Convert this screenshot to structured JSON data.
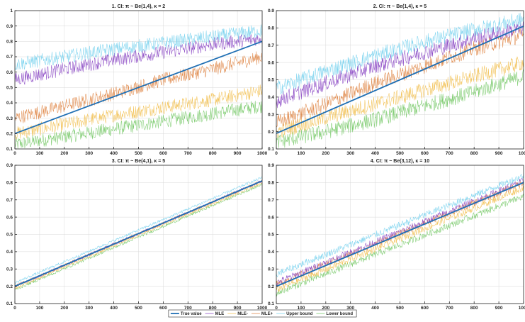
{
  "colors": {
    "true_value": "#1f6fb4",
    "mle": "#8e4ec6",
    "mle_minus": "#f2c35a",
    "mle_plus": "#e08a4c",
    "upper": "#7fd4ef",
    "lower": "#7ccb6e"
  },
  "legend": {
    "items": [
      {
        "key": "true_value",
        "label": "True value"
      },
      {
        "key": "mle",
        "label": "MLE"
      },
      {
        "key": "mle_minus",
        "label": "MLE-"
      },
      {
        "key": "mle_plus",
        "label": "MLE+"
      },
      {
        "key": "upper",
        "label": "Upper bound"
      },
      {
        "key": "lower",
        "label": "Lower bound"
      }
    ]
  },
  "chart_data": [
    {
      "type": "line",
      "title": "1. CI: π ~ Be(1,4), κ = 2",
      "xlim": [
        0,
        1000
      ],
      "ylim": [
        0.1,
        1.0
      ],
      "xticks": [
        "0",
        "100",
        "200",
        "300",
        "400",
        "500",
        "600",
        "700",
        "800",
        "900",
        "1000"
      ],
      "yticks": [
        "0.1",
        "0.2",
        "0.3",
        "0.4",
        "0.5",
        "0.6",
        "0.7",
        "0.8",
        "0.9",
        "1"
      ],
      "grid": true,
      "series": [
        {
          "name": "True value",
          "key": "true_value",
          "x": [
            0,
            1000
          ],
          "y": [
            0.2,
            0.8
          ]
        },
        {
          "name": "MLE",
          "key": "mle",
          "x": [
            0,
            200,
            400,
            600,
            800,
            1000
          ],
          "y": [
            0.55,
            0.62,
            0.68,
            0.73,
            0.78,
            0.82
          ]
        },
        {
          "name": "MLE-",
          "key": "mle_minus",
          "x": [
            0,
            200,
            400,
            600,
            800,
            1000
          ],
          "y": [
            0.2,
            0.26,
            0.32,
            0.37,
            0.42,
            0.48
          ]
        },
        {
          "name": "MLE+",
          "key": "mle_plus",
          "x": [
            0,
            200,
            400,
            600,
            800,
            1000
          ],
          "y": [
            0.3,
            0.38,
            0.46,
            0.55,
            0.62,
            0.7
          ]
        },
        {
          "name": "Upper bound",
          "key": "upper",
          "x": [
            0,
            200,
            400,
            600,
            800,
            1000
          ],
          "y": [
            0.65,
            0.7,
            0.75,
            0.79,
            0.83,
            0.87
          ]
        },
        {
          "name": "Lower bound",
          "key": "lower",
          "x": [
            0,
            200,
            400,
            600,
            800,
            1000
          ],
          "y": [
            0.13,
            0.18,
            0.23,
            0.28,
            0.33,
            0.38
          ]
        }
      ]
    },
    {
      "type": "line",
      "title": "2. CI: π ~ Be(1,4), κ = 5",
      "xlim": [
        0,
        1000
      ],
      "ylim": [
        0.1,
        0.9
      ],
      "xticks": [
        "0",
        "100",
        "200",
        "300",
        "400",
        "500",
        "600",
        "700",
        "800",
        "900",
        "1000"
      ],
      "yticks": [
        "0.1",
        "0.2",
        "0.3",
        "0.4",
        "0.5",
        "0.6",
        "0.7",
        "0.8",
        "0.9"
      ],
      "grid": true,
      "series": [
        {
          "name": "True value",
          "key": "true_value",
          "x": [
            0,
            1000
          ],
          "y": [
            0.19,
            0.81
          ]
        },
        {
          "name": "MLE",
          "key": "mle",
          "x": [
            0,
            200,
            400,
            600,
            800,
            1000
          ],
          "y": [
            0.38,
            0.48,
            0.58,
            0.66,
            0.74,
            0.8
          ]
        },
        {
          "name": "MLE-",
          "key": "mle_minus",
          "x": [
            0,
            200,
            400,
            600,
            800,
            1000
          ],
          "y": [
            0.2,
            0.28,
            0.36,
            0.44,
            0.52,
            0.6
          ]
        },
        {
          "name": "MLE+",
          "key": "mle_plus",
          "x": [
            0,
            200,
            400,
            600,
            800,
            1000
          ],
          "y": [
            0.25,
            0.36,
            0.48,
            0.58,
            0.68,
            0.76
          ]
        },
        {
          "name": "Upper bound",
          "key": "upper",
          "x": [
            0,
            200,
            400,
            600,
            800,
            1000
          ],
          "y": [
            0.45,
            0.55,
            0.64,
            0.72,
            0.79,
            0.85
          ]
        },
        {
          "name": "Lower bound",
          "key": "lower",
          "x": [
            0,
            200,
            400,
            600,
            800,
            1000
          ],
          "y": [
            0.14,
            0.2,
            0.27,
            0.35,
            0.43,
            0.52
          ]
        }
      ]
    },
    {
      "type": "line",
      "title": "3. CI: π ~ Be(4,1), κ = 5",
      "xlim": [
        0,
        1000
      ],
      "ylim": [
        0.1,
        0.9
      ],
      "xticks": [
        "0",
        "100",
        "200",
        "300",
        "400",
        "500",
        "600",
        "700",
        "800",
        "900",
        "1000"
      ],
      "yticks": [
        "0.1",
        "0.2",
        "0.3",
        "0.4",
        "0.5",
        "0.6",
        "0.7",
        "0.8",
        "0.9"
      ],
      "grid": true,
      "series": [
        {
          "name": "True value",
          "key": "true_value",
          "x": [
            0,
            1000
          ],
          "y": [
            0.2,
            0.81
          ]
        },
        {
          "name": "MLE",
          "key": "mle",
          "x": [
            0,
            1000
          ],
          "y": [
            0.2,
            0.81
          ]
        },
        {
          "name": "MLE-",
          "key": "mle_minus",
          "x": [
            0,
            1000
          ],
          "y": [
            0.19,
            0.8
          ]
        },
        {
          "name": "MLE+",
          "key": "mle_plus",
          "x": [
            0,
            1000
          ],
          "y": [
            0.2,
            0.81
          ]
        },
        {
          "name": "Upper bound",
          "key": "upper",
          "x": [
            0,
            1000
          ],
          "y": [
            0.22,
            0.83
          ]
        },
        {
          "name": "Lower bound",
          "key": "lower",
          "x": [
            0,
            1000
          ],
          "y": [
            0.18,
            0.79
          ]
        }
      ]
    },
    {
      "type": "line",
      "title": "4. CI: π ~ Be(3,12), κ = 10",
      "xlim": [
        0,
        1000
      ],
      "ylim": [
        0.1,
        0.9
      ],
      "xticks": [
        "0",
        "100",
        "200",
        "300",
        "400",
        "500",
        "600",
        "700",
        "800",
        "900",
        "1000"
      ],
      "yticks": [
        "0.1",
        "0.2",
        "0.3",
        "0.4",
        "0.5",
        "0.6",
        "0.7",
        "0.8",
        "0.9"
      ],
      "grid": true,
      "series": [
        {
          "name": "True value",
          "key": "true_value",
          "x": [
            0,
            1000
          ],
          "y": [
            0.2,
            0.8
          ]
        },
        {
          "name": "MLE",
          "key": "mle",
          "x": [
            0,
            1000
          ],
          "y": [
            0.22,
            0.81
          ]
        },
        {
          "name": "MLE-",
          "key": "mle_minus",
          "x": [
            0,
            1000
          ],
          "y": [
            0.18,
            0.77
          ]
        },
        {
          "name": "MLE+",
          "key": "mle_plus",
          "x": [
            0,
            1000
          ],
          "y": [
            0.21,
            0.8
          ]
        },
        {
          "name": "Upper bound",
          "key": "upper",
          "x": [
            0,
            1000
          ],
          "y": [
            0.27,
            0.84
          ]
        },
        {
          "name": "Lower bound",
          "key": "lower",
          "x": [
            0,
            1000
          ],
          "y": [
            0.16,
            0.72
          ]
        }
      ]
    }
  ]
}
